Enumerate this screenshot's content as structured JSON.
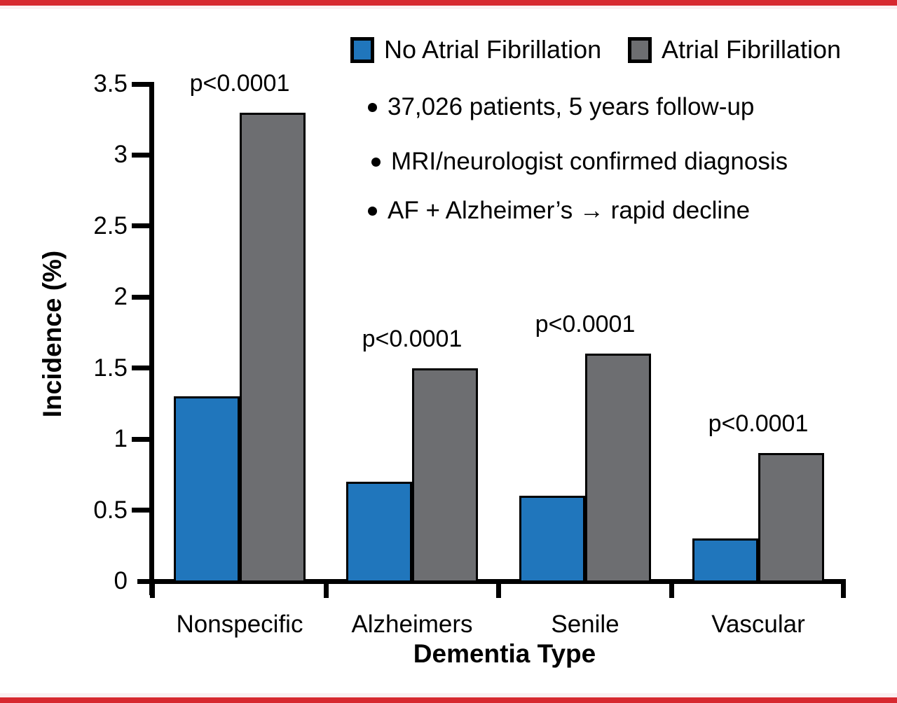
{
  "figure": {
    "border_color": "#d7282f",
    "background": "#ffffff"
  },
  "legend": {
    "items": [
      {
        "label": "No Atrial Fibrillation",
        "color": "#2076bc"
      },
      {
        "label": "Atrial Fibrillation",
        "color": "#6d6e71"
      }
    ]
  },
  "notes": [
    "37,026 patients, 5 years follow-up",
    "MRI/neurologist confirmed diagnosis",
    "AF + Alzheimer’s → rapid decline"
  ],
  "chart_data": {
    "type": "bar",
    "title": "",
    "xlabel": "Dementia Type",
    "ylabel": "Incidence (%)",
    "categories": [
      "Nonspecific",
      "Alzheimers",
      "Senile",
      "Vascular"
    ],
    "series": [
      {
        "name": "No Atrial Fibrillation",
        "color": "#2076bc",
        "values": [
          1.3,
          0.7,
          0.6,
          0.3
        ]
      },
      {
        "name": "Atrial Fibrillation",
        "color": "#6d6e71",
        "values": [
          3.3,
          1.5,
          1.6,
          0.9
        ]
      }
    ],
    "annotations": [
      "p<0.0001",
      "p<0.0001",
      "p<0.0001",
      "p<0.0001"
    ],
    "ylim": [
      0,
      3.5
    ],
    "y_ticks": [
      "0",
      "0.5",
      "1",
      "1.5",
      "2",
      "2.5",
      "3",
      "3.5"
    ],
    "grid": false,
    "legend_position": "top"
  }
}
